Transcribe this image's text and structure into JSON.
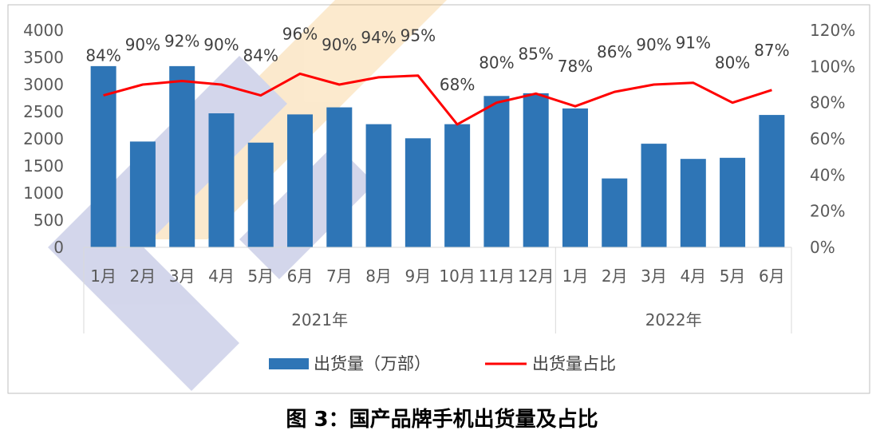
{
  "chart_data": {
    "type": "bar",
    "title": "图 3：国产品牌手机出货量及占比",
    "categories": [
      "1月",
      "2月",
      "3月",
      "4月",
      "5月",
      "6月",
      "7月",
      "8月",
      "9月",
      "10月",
      "11月",
      "12月",
      "1月",
      "2月",
      "3月",
      "4月",
      "5月",
      "6月"
    ],
    "groups": [
      {
        "label": "2021年",
        "count": 12
      },
      {
        "label": "2022年",
        "count": 6
      }
    ],
    "series": [
      {
        "name": "出货量（万部）",
        "type": "bar",
        "axis": "left",
        "color": "#2E75B6",
        "values": [
          3340,
          1950,
          3340,
          2470,
          1930,
          2450,
          2580,
          2270,
          2010,
          2270,
          2790,
          2840,
          2560,
          1270,
          1910,
          1630,
          1650,
          2440
        ]
      },
      {
        "name": "出货量占比",
        "type": "line",
        "axis": "right",
        "color": "#FF0000",
        "values": [
          84,
          90,
          92,
          90,
          84,
          96,
          90,
          94,
          95,
          68,
          80,
          85,
          78,
          86,
          90,
          91,
          80,
          87
        ],
        "labels": [
          "84%",
          "90%",
          "92%",
          "90%",
          "84%",
          "96%",
          "90%",
          "94%",
          "95%",
          "68%",
          "80%",
          "85%",
          "78%",
          "86%",
          "90%",
          "91%",
          "80%",
          "87%"
        ]
      }
    ],
    "y_left": {
      "min": 0,
      "max": 4000,
      "ticks": [
        "0",
        "500",
        "1000",
        "1500",
        "2000",
        "2500",
        "3000",
        "3500",
        "4000"
      ]
    },
    "y_right": {
      "min": 0,
      "max": 120,
      "ticks": [
        "0%",
        "20%",
        "40%",
        "60%",
        "80%",
        "100%",
        "120%"
      ]
    },
    "legend_position": "bottom",
    "grid": false
  }
}
